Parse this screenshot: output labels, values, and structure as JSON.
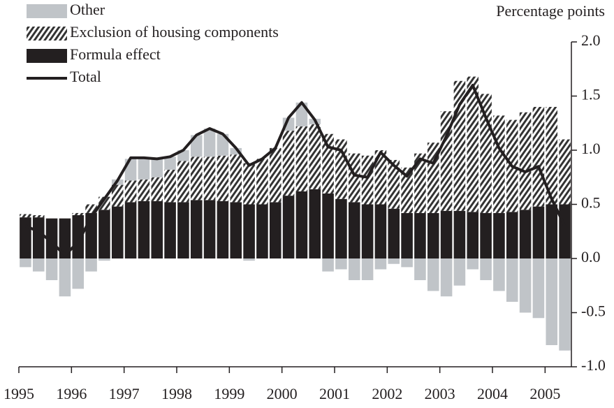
{
  "chart_data": {
    "type": "bar-line",
    "y_label": "Percentage points",
    "x": [
      1995.125,
      1995.375,
      1995.625,
      1995.875,
      1996.125,
      1996.375,
      1996.625,
      1996.875,
      1997.125,
      1997.375,
      1997.625,
      1997.875,
      1998.125,
      1998.375,
      1998.625,
      1998.875,
      1999.125,
      1999.375,
      1999.625,
      1999.875,
      2000.125,
      2000.375,
      2000.625,
      2000.875,
      2001.125,
      2001.375,
      2001.625,
      2001.875,
      2002.125,
      2002.375,
      2002.625,
      2002.875,
      2003.125,
      2003.375,
      2003.625,
      2003.875,
      2004.125,
      2004.375,
      2004.625,
      2004.875,
      2005.125,
      2005.375
    ],
    "series": [
      {
        "name": "Other",
        "color": "#c0c4c8",
        "mark": "bar",
        "values": [
          -0.08,
          -0.12,
          -0.2,
          -0.35,
          -0.28,
          -0.12,
          -0.02,
          0.05,
          0.2,
          0.2,
          0.17,
          0.12,
          0.1,
          0.2,
          0.26,
          0.2,
          0.06,
          -0.02,
          0,
          0,
          0.12,
          0.22,
          0.05,
          -0.12,
          -0.1,
          -0.2,
          -0.2,
          -0.1,
          -0.05,
          -0.08,
          -0.2,
          -0.3,
          -0.35,
          -0.25,
          -0.1,
          -0.2,
          -0.3,
          -0.4,
          -0.5,
          -0.55,
          -0.8,
          -0.85
        ]
      },
      {
        "name": "Exclusion of housing components",
        "color": "#333333",
        "mark": "hatch",
        "values": [
          0.03,
          0.02,
          0,
          0,
          0.02,
          0.08,
          0.12,
          0.2,
          0.2,
          0.2,
          0.22,
          0.3,
          0.38,
          0.4,
          0.4,
          0.42,
          0.44,
          0.38,
          0.42,
          0.5,
          0.6,
          0.6,
          0.6,
          0.55,
          0.55,
          0.45,
          0.45,
          0.5,
          0.45,
          0.42,
          0.55,
          0.65,
          0.92,
          1.2,
          1.25,
          1.1,
          0.9,
          0.85,
          0.9,
          0.92,
          0.9,
          0.6
        ]
      },
      {
        "name": "Formula effect",
        "color": "#231f20",
        "mark": "bar",
        "values": [
          0.38,
          0.38,
          0.37,
          0.37,
          0.4,
          0.42,
          0.45,
          0.48,
          0.52,
          0.53,
          0.53,
          0.52,
          0.52,
          0.54,
          0.54,
          0.53,
          0.52,
          0.5,
          0.5,
          0.52,
          0.58,
          0.62,
          0.64,
          0.6,
          0.55,
          0.52,
          0.5,
          0.5,
          0.46,
          0.42,
          0.42,
          0.42,
          0.44,
          0.44,
          0.43,
          0.42,
          0.42,
          0.43,
          0.45,
          0.48,
          0.5,
          0.5
        ]
      },
      {
        "name": "Total",
        "color": "#231f20",
        "mark": "line",
        "values": [
          0.3,
          0.25,
          0.15,
          0.03,
          0.15,
          0.38,
          0.55,
          0.72,
          0.93,
          0.93,
          0.92,
          0.94,
          1.0,
          1.14,
          1.2,
          1.15,
          1.02,
          0.86,
          0.92,
          1.02,
          1.3,
          1.44,
          1.28,
          1.03,
          1.0,
          0.77,
          0.75,
          0.98,
          0.86,
          0.76,
          0.92,
          0.88,
          1.13,
          1.42,
          1.6,
          1.3,
          1.02,
          0.85,
          0.8,
          0.85,
          0.55,
          0.3
        ]
      }
    ],
    "xlim": [
      1995,
      2005.5
    ],
    "xticks": [
      1995,
      1996,
      1997,
      1998,
      1999,
      2000,
      2001,
      2002,
      2003,
      2004,
      2005
    ],
    "ylim": [
      -1,
      2
    ],
    "yticks": [
      {
        "value": -1,
        "label": "-1.0"
      },
      -0.5,
      {
        "value": 0,
        "label": "0.0"
      },
      0.5,
      {
        "value": 1,
        "label": "1.0"
      },
      1.5,
      {
        "value": 2,
        "label": "2.0"
      }
    ],
    "legend": "top-left"
  }
}
